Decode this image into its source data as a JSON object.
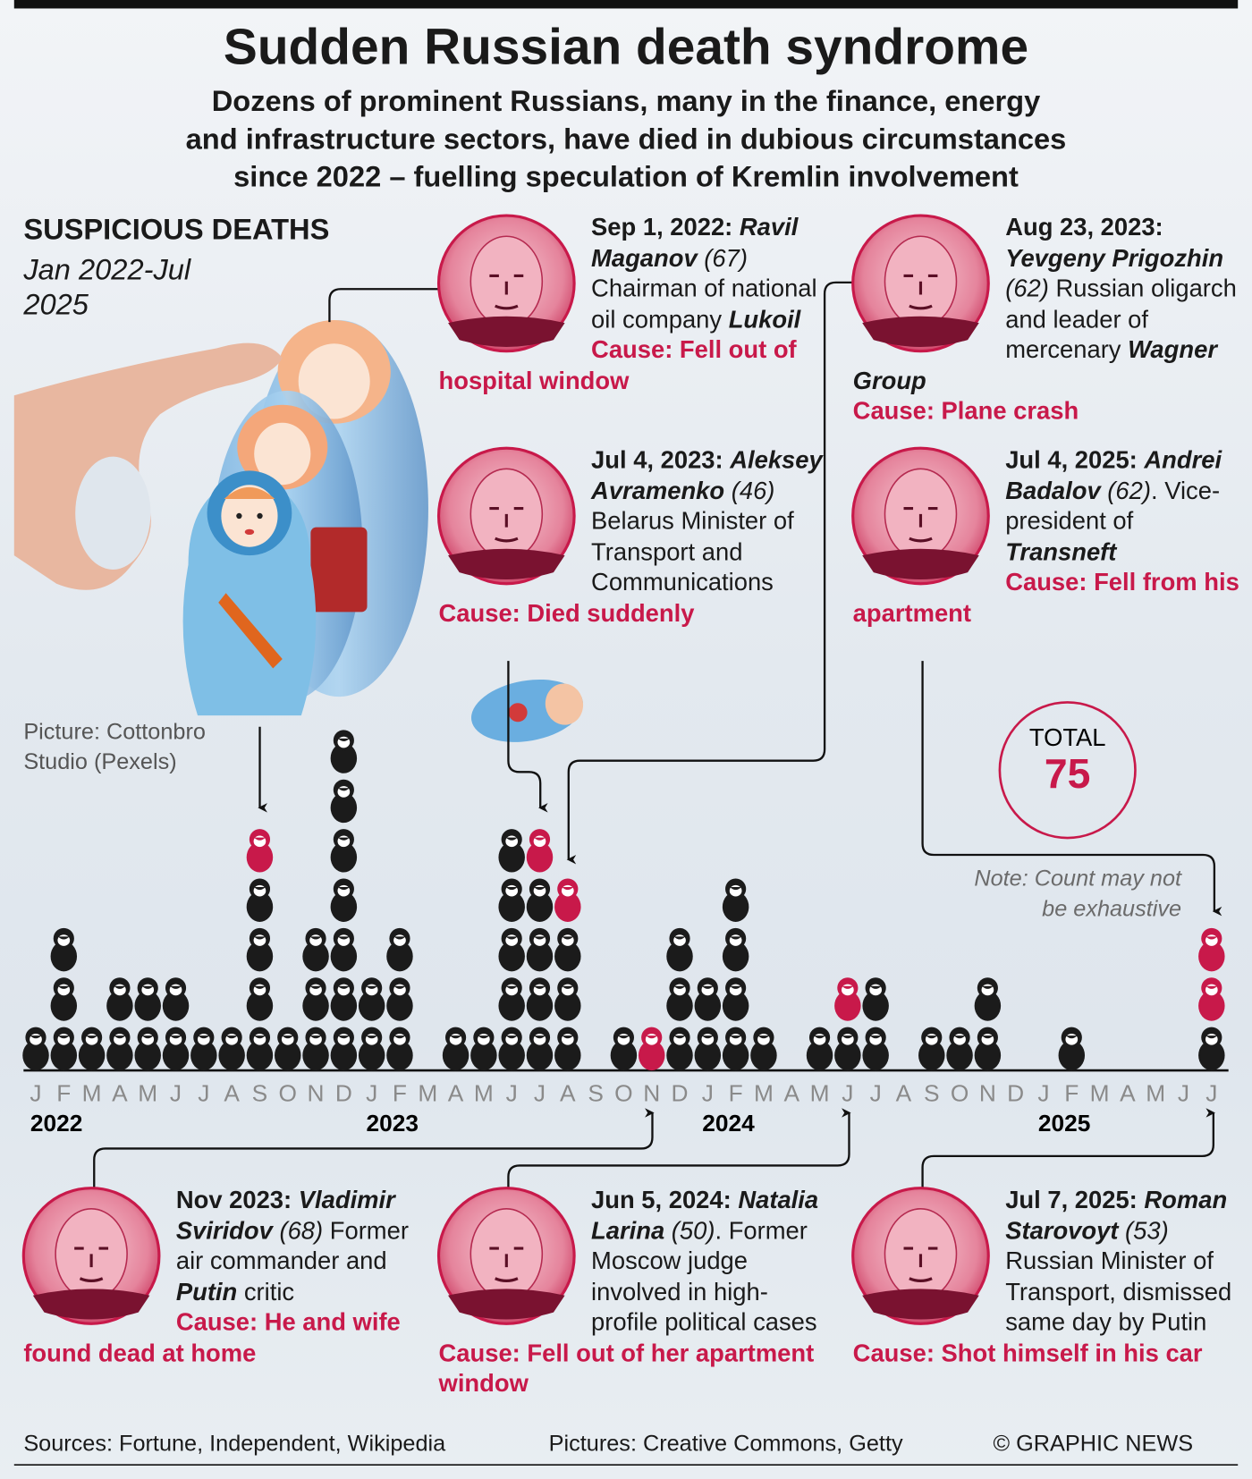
{
  "header": {
    "title": "Sudden Russian death syndrome",
    "subtitle": [
      "Dozens of prominent Russians, many in the finance, energy",
      "and infrastructure sectors, have died in dubious circumstances",
      "since 2022 – fuelling speculation of Kremlin involvement"
    ]
  },
  "heading": {
    "title": "SUSPICIOUS DEATHS",
    "period": "Jan 2022-Jul 2025"
  },
  "credit": "Picture: Cottonbro Studio (Pexels)",
  "chart_data": {
    "type": "pictogram",
    "categories": [
      "J",
      "F",
      "M",
      "A",
      "M",
      "J",
      "J",
      "A",
      "S",
      "O",
      "N",
      "D",
      "J",
      "F",
      "M",
      "A",
      "M",
      "J",
      "J",
      "A",
      "S",
      "O",
      "N",
      "D",
      "J",
      "F",
      "M",
      "A",
      "M",
      "J",
      "J",
      "A",
      "S",
      "O",
      "N",
      "D",
      "J",
      "F",
      "M",
      "A",
      "M",
      "J",
      "J"
    ],
    "years": [
      "2022",
      "2023",
      "2024",
      "2025"
    ],
    "series": [
      {
        "color": "#1b1b1b",
        "values": [
          1,
          3,
          1,
          2,
          2,
          2,
          1,
          1,
          4,
          1,
          3,
          7,
          2,
          3,
          0,
          1,
          1,
          5,
          4,
          3,
          0,
          1,
          0,
          3,
          2,
          4,
          1,
          0,
          1,
          1,
          2,
          0,
          1,
          1,
          2,
          0,
          0,
          1,
          0,
          0,
          0,
          0,
          1
        ]
      },
      {
        "color": "#c8194a",
        "values": [
          0,
          0,
          0,
          0,
          0,
          0,
          0,
          0,
          1,
          0,
          0,
          0,
          0,
          0,
          0,
          0,
          0,
          0,
          1,
          1,
          0,
          0,
          1,
          0,
          0,
          0,
          0,
          0,
          0,
          1,
          0,
          0,
          0,
          0,
          0,
          0,
          0,
          0,
          0,
          0,
          0,
          0,
          2
        ]
      }
    ],
    "total_label": "TOTAL",
    "total": 75,
    "note": "Note: Count may not be exhaustive"
  },
  "profiles": [
    {
      "date": "Sep 1, 2022:",
      "name": "Ravil Maganov",
      "age": "(67)",
      "desc": [
        "Chairman of national oil company ",
        "Lukoil"
      ],
      "cause": "Cause: Fell out of hospital window"
    },
    {
      "date": "Jul 4, 2023:",
      "name": "Aleksey Avramenko",
      "age": "(46)",
      "desc": [
        "Belarus Minister of Transport and Communications"
      ],
      "cause": "Cause: Died suddenly"
    },
    {
      "date": "Aug 23, 2023:",
      "name": "Yevgeny Prigozhin",
      "age": "(62)",
      "desc": [
        "Russian oligarch and leader of mercenary ",
        "Wagner Group"
      ],
      "cause": "Cause: Plane crash"
    },
    {
      "date": "Jul 4, 2025:",
      "name": "Andrei Badalov",
      "age": "(62)",
      "desc": [
        ". Vice-president of ",
        "Transneft"
      ],
      "cause": "Cause: Fell from his apartment"
    },
    {
      "date": "Nov 2023:",
      "name": "Vladimir Sviridov",
      "age": "(68)",
      "desc": [
        "Former air commander and ",
        "Putin",
        " critic"
      ],
      "cause": "Cause: He and wife found dead at home"
    },
    {
      "date": "Jun 5, 2024:",
      "name": "Natalia Larina",
      "age": "(50)",
      "desc": [
        ". Former Moscow judge involved in high-profile political cases"
      ],
      "cause": "Cause: Fell out of her apartment window"
    },
    {
      "date": "Jul 7, 2025:",
      "name": "Roman Starovoyt",
      "age": "(53)",
      "desc": [
        "Russian Minister of Transport, dismissed same day by Putin"
      ],
      "cause": "Cause: Shot himself in his car"
    }
  ],
  "footer": {
    "sources": "Sources: Fortune, Independent, Wikipedia",
    "pictures": "Pictures: Creative Commons, Getty",
    "copyright": "© GRAPHIC NEWS"
  }
}
